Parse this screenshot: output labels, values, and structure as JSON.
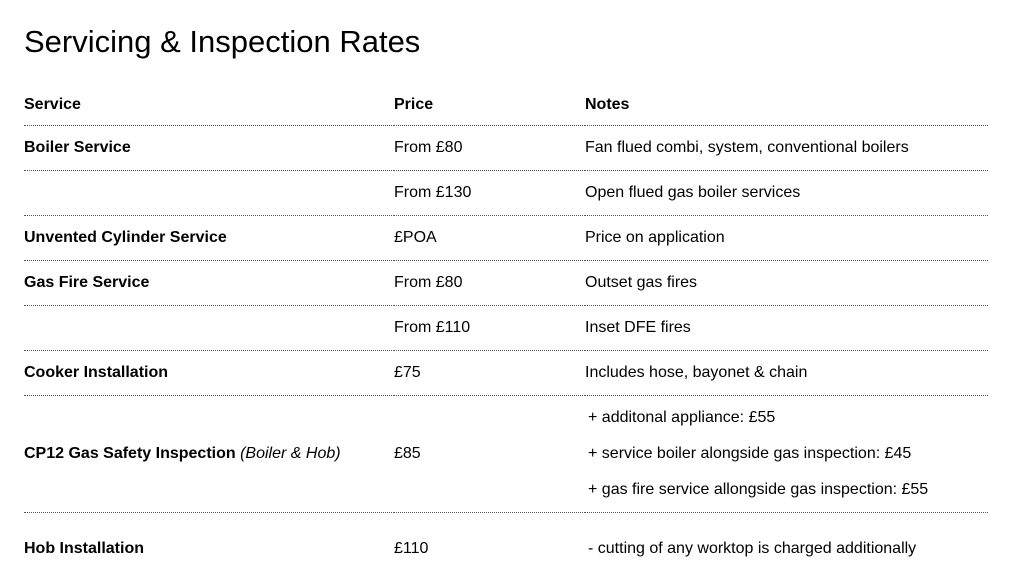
{
  "title": "Servicing & Inspection Rates",
  "table": {
    "headers": {
      "service": "Service",
      "price": "Price",
      "notes": "Notes"
    },
    "rows": [
      {
        "service": "Boiler Service",
        "price": "From £80",
        "notes": "Fan flued combi, system, conventional boilers"
      },
      {
        "service": "",
        "price": "From £130",
        "notes": "Open flued gas boiler services"
      },
      {
        "service": "Unvented Cylinder Service",
        "price": "£POA",
        "notes": "Price on application"
      },
      {
        "service": "Gas Fire Service",
        "price": "From £80",
        "notes": "Outset gas fires"
      },
      {
        "service": "",
        "price": "From £110",
        "notes": "Inset DFE fires"
      },
      {
        "service": "Cooker Installation",
        "price": "£75",
        "notes": "Includes hose, bayonet & chain"
      }
    ],
    "cp12": {
      "service": "CP12 Gas Safety Inspection",
      "qualifier": "(Boiler & Hob)",
      "price": "£85",
      "notes": [
        "+ additonal appliance: £55",
        "+ service boiler alongside gas inspection: £45",
        "+ gas fire service allongside gas inspection: £55"
      ]
    },
    "hob": {
      "service": "Hob Installation",
      "price": "£110",
      "notes": "- cutting of any worktop is charged additionally"
    }
  }
}
